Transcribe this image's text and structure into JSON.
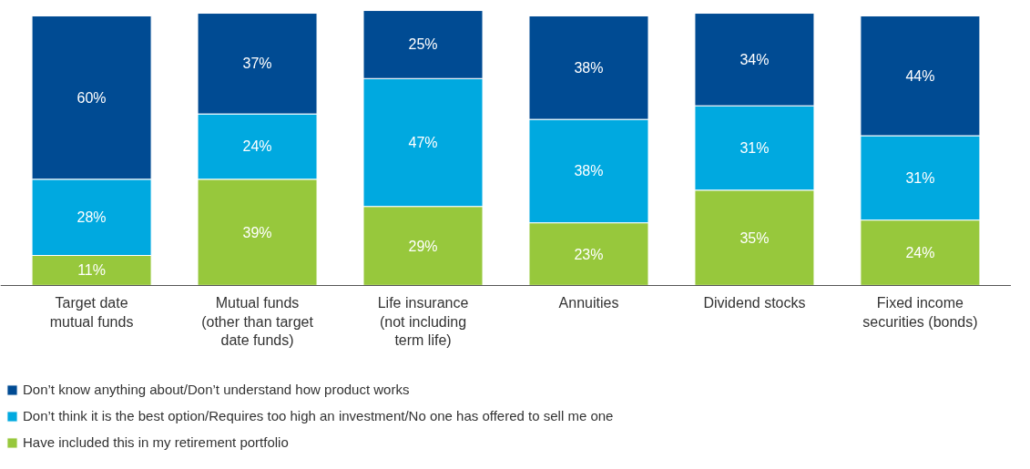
{
  "chart_data": {
    "type": "bar",
    "stacked": true,
    "legend": "bottom",
    "categories": [
      "Target date\nmutual funds",
      "Mutual funds\n(other than target\ndate funds)",
      "Life insurance\n(not including\nterm life)",
      "Annuities",
      "Dividend stocks",
      "Fixed income\nsecurities (bonds)"
    ],
    "series": [
      {
        "name": "Have included this in my retirement portfolio",
        "color": "#97c83c",
        "values": [
          11,
          39,
          29,
          23,
          35,
          24
        ],
        "value_labels": [
          "11%",
          "39%",
          "29%",
          "23%",
          "35%",
          "24%"
        ]
      },
      {
        "name": "Don’t think it is the best option/Requires too high an investment/No one has offered to sell me one",
        "color": "#00a9e0",
        "values": [
          28,
          24,
          47,
          38,
          31,
          31
        ],
        "value_labels": [
          "28%",
          "24%",
          "47%",
          "38%",
          "31%",
          "31%"
        ]
      },
      {
        "name": "Don’t know anything about/Don’t understand how product works",
        "color": "#004b93",
        "values": [
          60,
          37,
          25,
          38,
          34,
          44
        ],
        "value_labels": [
          "60%",
          "37%",
          "25%",
          "38%",
          "34%",
          "44%"
        ]
      }
    ]
  }
}
